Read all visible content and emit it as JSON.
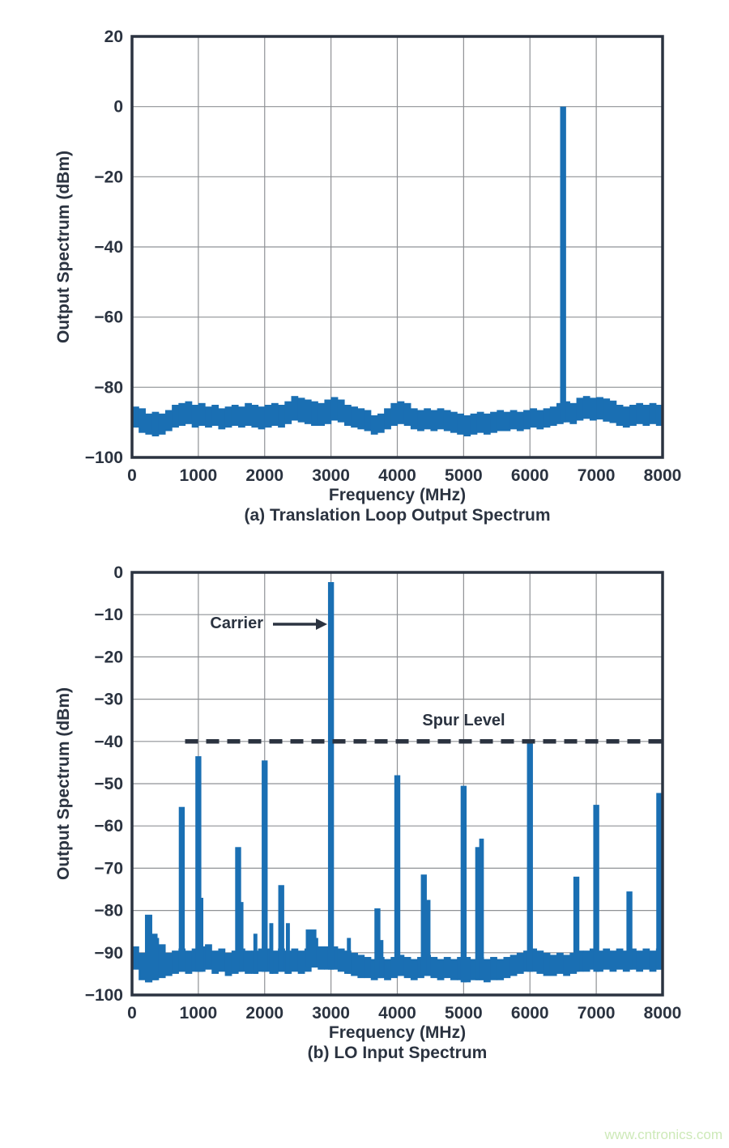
{
  "page": {
    "watermark_text": "www.cntronics.com"
  },
  "colors": {
    "bar_blue": "#1a6fb3",
    "grid_gray": "#8f9296",
    "frame_dark": "#2b3340",
    "text_dark": "#2b3340",
    "dashed_line": "#2b3340",
    "watermark_green": "#cde9b8"
  },
  "chart_data": [
    {
      "type": "bar",
      "caption": "(a) Translation Loop Output Spectrum",
      "xlabel": "Frequency (MHz)",
      "ylabel": "Output Spectrum (dBm)",
      "xlim": [
        0,
        8000
      ],
      "ylim": [
        -100,
        20
      ],
      "xticks": [
        0,
        1000,
        2000,
        3000,
        4000,
        5000,
        6000,
        7000,
        8000
      ],
      "yticks": [
        20,
        0,
        -20,
        -40,
        -60,
        -80,
        -100
      ],
      "grid": true,
      "legend": null,
      "noise_floor": {
        "bin_mhz": 100,
        "hi_dbm": [
          -85.5,
          -86,
          -87.5,
          -87,
          -87.5,
          -86.5,
          -85,
          -84.5,
          -84,
          -85,
          -84.5,
          -85.5,
          -85,
          -86,
          -85.5,
          -85,
          -85.5,
          -84.5,
          -85,
          -85.5,
          -85,
          -84.5,
          -85,
          -84,
          -82.5,
          -83,
          -83.5,
          -84,
          -84.5,
          -83.5,
          -82.8,
          -83.5,
          -85,
          -85.5,
          -86,
          -86.5,
          -88,
          -87.5,
          -86,
          -84.5,
          -84,
          -84.5,
          -86,
          -86.5,
          -86,
          -86.5,
          -86,
          -86.5,
          -87,
          -87.5,
          -88,
          -87.5,
          -87,
          -87.5,
          -87,
          -86.5,
          -87,
          -86.5,
          -87,
          -86.5,
          -86,
          -86.5,
          -86,
          -85.5,
          -84.5,
          -84,
          -84.5,
          -83,
          -82.5,
          -83,
          -82.8,
          -83.2,
          -83.8,
          -85,
          -85.5,
          -85,
          -84.5,
          -85,
          -84.5,
          -85
        ],
        "lo_dbm": [
          -91.5,
          -93,
          -93.5,
          -94,
          -93.5,
          -92.5,
          -91.5,
          -91,
          -90.5,
          -91.5,
          -91,
          -91.5,
          -91,
          -92,
          -91.5,
          -91,
          -91.5,
          -91,
          -91.5,
          -92,
          -91.5,
          -91,
          -91.5,
          -90.5,
          -89.5,
          -90,
          -90.5,
          -91,
          -91,
          -90.5,
          -89.5,
          -90,
          -91,
          -91.5,
          -92,
          -92.5,
          -93.5,
          -93,
          -92,
          -91,
          -90.5,
          -91,
          -92,
          -92.5,
          -92,
          -92.5,
          -92,
          -92.5,
          -93,
          -93.5,
          -94,
          -93.5,
          -93,
          -93.5,
          -93,
          -92.5,
          -92.5,
          -92,
          -92.5,
          -92,
          -91.5,
          -92,
          -91.5,
          -91,
          -90.5,
          -90,
          -90.5,
          -89.5,
          -89,
          -89.5,
          -89.2,
          -89.8,
          -90.2,
          -91,
          -91.5,
          -91,
          -90.5,
          -91,
          -90.5,
          -91
        ]
      },
      "spurs_mhz_dbm_w": [
        [
          6500,
          0,
          90
        ]
      ]
    },
    {
      "type": "bar",
      "caption": "(b) LO Input Spectrum",
      "xlabel": "Frequency (MHz)",
      "ylabel": "Output Spectrum (dBm)",
      "xlim": [
        0,
        8000
      ],
      "ylim": [
        -100,
        0
      ],
      "xticks": [
        0,
        1000,
        2000,
        3000,
        4000,
        5000,
        6000,
        7000,
        8000
      ],
      "yticks": [
        0,
        -10,
        -20,
        -30,
        -40,
        -50,
        -60,
        -70,
        -80,
        -90,
        -100
      ],
      "grid": true,
      "legend": null,
      "carrier": {
        "label": "Carrier",
        "f_mhz": 3000,
        "level_dbm": -2.3
      },
      "spur_level": {
        "label": "Spur Level",
        "value_dbm": -40,
        "from_mhz": 800,
        "to_mhz": 8000
      },
      "noise_floor": {
        "bin_mhz": 100,
        "hi_dbm": [
          -88.5,
          -90,
          -86,
          -86.5,
          -88,
          -90,
          -89.5,
          -89,
          -89.5,
          -89,
          -88.5,
          -88,
          -89.5,
          -89,
          -90,
          -89.5,
          -89,
          -89.5,
          -89.5,
          -89,
          -89,
          -89.5,
          -89,
          -89.5,
          -89,
          -89.5,
          -89,
          -86.5,
          -88.5,
          -88.5,
          -88.5,
          -89,
          -89.5,
          -90,
          -90.5,
          -91,
          -91.5,
          -91,
          -91.5,
          -91,
          -90.5,
          -91,
          -91.5,
          -91,
          -90.5,
          -91,
          -91.5,
          -91,
          -91.5,
          -91,
          -91,
          -91.5,
          -91,
          -91.5,
          -91,
          -91.5,
          -91,
          -90.5,
          -90,
          -89.5,
          -89,
          -89.5,
          -90,
          -90.5,
          -90,
          -90.5,
          -90,
          -89.5,
          -89.5,
          -89,
          -89.5,
          -89,
          -89.5,
          -89,
          -89.5,
          -89,
          -89.5,
          -89,
          -89.5,
          -89
        ],
        "lo_dbm": [
          -94,
          -96.5,
          -97,
          -96.5,
          -96,
          -95.5,
          -95,
          -94.5,
          -95,
          -94.5,
          -94.5,
          -94,
          -95,
          -94.5,
          -95.5,
          -95,
          -94.5,
          -95,
          -95,
          -94.5,
          -94.5,
          -95,
          -94.5,
          -95,
          -94.5,
          -95,
          -94.5,
          -93.5,
          -94,
          -94,
          -94,
          -94.5,
          -95,
          -95.5,
          -96,
          -96,
          -96.5,
          -96,
          -96.5,
          -96,
          -95.5,
          -96,
          -96.5,
          -96,
          -95.5,
          -96,
          -96.5,
          -96,
          -96.5,
          -96.5,
          -97,
          -96.5,
          -96.5,
          -97,
          -96.5,
          -96.5,
          -96,
          -95.5,
          -95,
          -94.5,
          -94.5,
          -95,
          -95.5,
          -95.5,
          -95,
          -95.5,
          -95,
          -94.5,
          -94.5,
          -94,
          -94.5,
          -94,
          -94.5,
          -94,
          -94.5,
          -94,
          -94.5,
          -94,
          -94.5,
          -94
        ]
      },
      "spurs_mhz_dbm_w": [
        [
          250,
          -81,
          110
        ],
        [
          320,
          -85.5,
          130
        ],
        [
          750,
          -55.5,
          90
        ],
        [
          1000,
          -43.5,
          90
        ],
        [
          1040,
          -77,
          70
        ],
        [
          1600,
          -65,
          90
        ],
        [
          1650,
          -78,
          60
        ],
        [
          1860,
          -85.5,
          60
        ],
        [
          2000,
          -44.5,
          90
        ],
        [
          2100,
          -83,
          60
        ],
        [
          2250,
          -74,
          90
        ],
        [
          2350,
          -83,
          60
        ],
        [
          2700,
          -84.5,
          160
        ],
        [
          3000,
          -2.3,
          90
        ],
        [
          3270,
          -86.5,
          60
        ],
        [
          3700,
          -79.5,
          90
        ],
        [
          3760,
          -87,
          60
        ],
        [
          4000,
          -48,
          90
        ],
        [
          4400,
          -71.5,
          90
        ],
        [
          4470,
          -77.5,
          60
        ],
        [
          5000,
          -50.5,
          90
        ],
        [
          5210,
          -65,
          70
        ],
        [
          5270,
          -63,
          70
        ],
        [
          6000,
          -40,
          90
        ],
        [
          6700,
          -72,
          90
        ],
        [
          7000,
          -55,
          90
        ],
        [
          7500,
          -75.5,
          90
        ],
        [
          7950,
          -52.2,
          90
        ]
      ]
    }
  ]
}
